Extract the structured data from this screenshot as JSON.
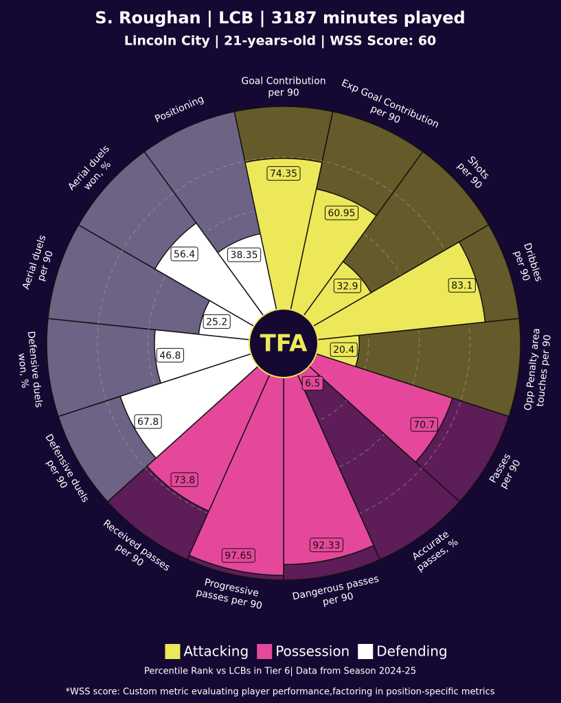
{
  "chart_data": {
    "type": "pizza",
    "title": "S. Roughan | LCB | 3187 minutes played",
    "subtitle": "Lincoln City | 21-years-old | WSS Score: 60",
    "logo": "TFA",
    "series": [
      {
        "name": "Attacking",
        "color": "#ede85a",
        "background": "#655b2a",
        "categories": [
          [
            "Goal Contribution",
            "per 90"
          ],
          [
            "Exp Goal Contribution",
            "per 90"
          ],
          [
            "Shots",
            "per 90"
          ],
          [
            "Dribbles",
            "per 90"
          ],
          [
            "Opp Penalty area",
            "touches per 90"
          ]
        ],
        "values": [
          74.35,
          60.95,
          32.9,
          83.1,
          20.4
        ]
      },
      {
        "name": "Possession",
        "color": "#e5489a",
        "background": "#5c1d58",
        "categories": [
          [
            "Passes",
            "per 90"
          ],
          [
            "Accurate",
            "passes, %"
          ],
          [
            "Dangerous passes",
            "per 90"
          ],
          [
            "Progressive",
            "passes per 90"
          ],
          [
            "Received passes",
            "per 90"
          ]
        ],
        "values": [
          70.7,
          6.5,
          92.33,
          97.65,
          73.8
        ]
      },
      {
        "name": "Defending",
        "color": "#ffffff",
        "background": "#6d6384",
        "categories": [
          [
            "Defensive duels",
            "per 90"
          ],
          [
            "Defensive duels",
            "won, %"
          ],
          [
            "Aerial duels",
            "per 90"
          ],
          [
            "Aerial duels",
            "won, %"
          ],
          [
            "Positioning"
          ]
        ],
        "values": [
          67.8,
          46.8,
          25.2,
          56.4,
          38.35
        ]
      }
    ],
    "ylim": [
      0,
      100
    ],
    "yticks": [
      25,
      50,
      75
    ],
    "notes": [
      "Percentile Rank vs LCBs in Tier 6| Data from Season 2024-25",
      "*WSS score: Custom metric evaluating player performance,factoring in position-specific metrics"
    ]
  }
}
